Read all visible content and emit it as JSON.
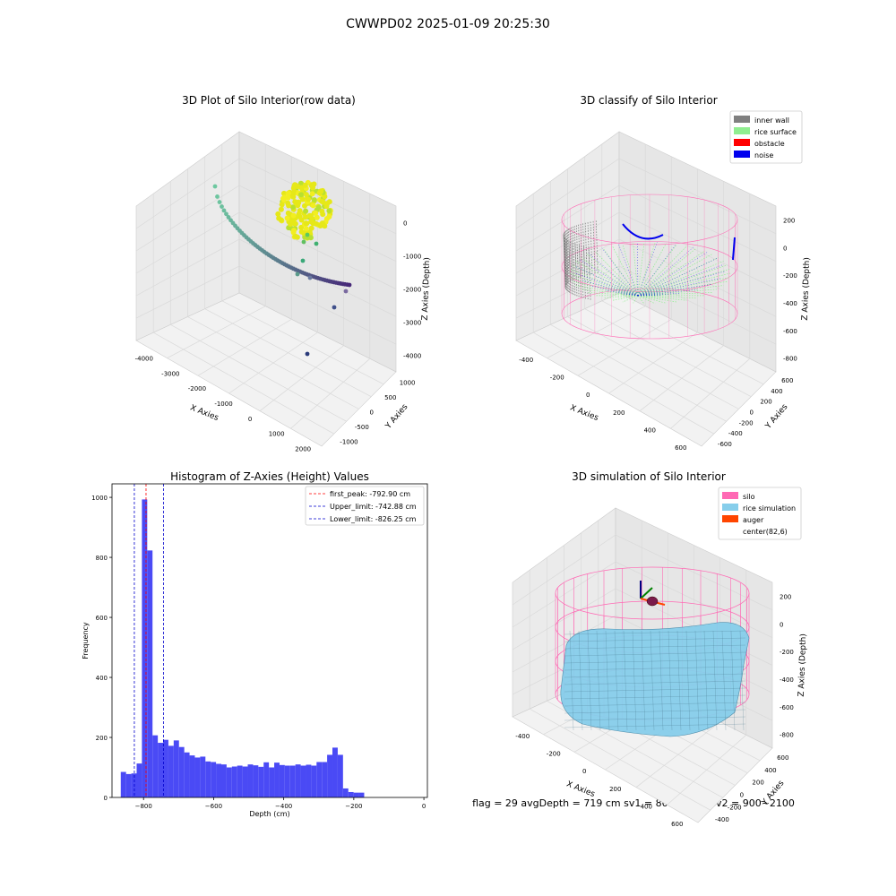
{
  "suptitle": "CWWPD02 2025-01-09 20:25:30",
  "status_text": "flag = 29  avgDepth = 719 cm  sv1 = 800~2000  sv2 = 900~2100",
  "colors": {
    "hist_bar": "#4a4af5",
    "first_peak": "#ff0000",
    "limit_line": "#0000cc",
    "inner_wall": "#808080",
    "rice_surface": "#90ee90",
    "obstacle": "#ff0000",
    "noise": "#0000ee",
    "silo": "#ff69b4",
    "rice_simulation": "#87ceeb",
    "auger": "#ff4500",
    "pane": "#ebebeb",
    "grid": "#d9d9d9"
  },
  "chart_data": [
    {
      "type": "scatter3d",
      "title": "3D Plot of Silo Interior(row data)",
      "xlabel": "X Axies",
      "ylabel": "Y Axies",
      "zlabel": "Z Axies (Depth)",
      "x_ticks": [
        "-4000",
        "-3000",
        "-2000",
        "-1000",
        "0",
        "1000",
        "2000"
      ],
      "y_ticks": [
        "1000",
        "500",
        "0",
        "-500",
        "-1000"
      ],
      "z_ticks": [
        "0",
        "-1000",
        "-2000",
        "-3000",
        "-4000"
      ],
      "xlim": [
        -4500,
        2800
      ],
      "ylim": [
        -1200,
        1200
      ],
      "zlim": [
        -4500,
        300
      ]
    },
    {
      "type": "scatter3d",
      "title": "3D classify of Silo Interior",
      "xlabel": "X Axies",
      "ylabel": "Y Axies",
      "zlabel": "Z Axies (Depth)",
      "x_ticks": [
        "-400",
        "-200",
        "0",
        "200",
        "400",
        "600"
      ],
      "y_ticks": [
        "600",
        "400",
        "200",
        "0",
        "-200",
        "-400",
        "-600"
      ],
      "z_ticks": [
        "200",
        "0",
        "-200",
        "-400",
        "-600",
        "-800"
      ],
      "legend": [
        {
          "label": "inner wall",
          "color_key": "inner_wall"
        },
        {
          "label": "rice surface",
          "color_key": "rice_surface"
        },
        {
          "label": "obstacle",
          "color_key": "obstacle"
        },
        {
          "label": "noise",
          "color_key": "noise"
        }
      ],
      "legend_loc": "upper right"
    },
    {
      "type": "histogram",
      "title": "Histogram of Z-Axies (Height) Values",
      "xlabel": "Depth (cm)",
      "ylabel": "Frequency",
      "xlim": [
        -890,
        10
      ],
      "ylim": [
        0,
        1045
      ],
      "x_ticks": [
        -800,
        -600,
        -400,
        -200,
        0
      ],
      "x_tick_labels": [
        "−800",
        "−600",
        "−400",
        "−200",
        "0"
      ],
      "y_ticks": [
        0,
        200,
        400,
        600,
        800,
        1000
      ],
      "bin_start": -865,
      "bin_width": 15.1,
      "values": [
        85,
        78,
        80,
        113,
        993,
        823,
        207,
        182,
        192,
        172,
        190,
        168,
        150,
        140,
        133,
        136,
        120,
        118,
        112,
        110,
        100,
        103,
        106,
        103,
        110,
        107,
        102,
        117,
        100,
        116,
        108,
        106,
        106,
        110,
        106,
        109,
        106,
        118,
        118,
        142,
        166,
        142,
        30,
        18,
        16,
        16
      ],
      "lines": [
        {
          "label": "first_peak: -792.90 cm",
          "x": -792.9,
          "color_key": "first_peak"
        },
        {
          "label": "Upper_limit: -742.88 cm",
          "x": -742.88,
          "color_key": "limit_line"
        },
        {
          "label": "Lower_limit: -826.25 cm",
          "x": -826.25,
          "color_key": "limit_line"
        }
      ],
      "legend_loc": "upper right"
    },
    {
      "type": "surface3d",
      "title": "3D simulation of Silo Interior",
      "xlabel": "X Axies",
      "ylabel": "Y Axies",
      "zlabel": "Z Axies (Depth)",
      "x_ticks": [
        "-400",
        "-200",
        "0",
        "200",
        "400",
        "600"
      ],
      "y_ticks": [
        "600",
        "400",
        "200",
        "0",
        "-200",
        "-400"
      ],
      "z_ticks": [
        "200",
        "0",
        "-200",
        "-400",
        "-600",
        "-800"
      ],
      "legend": [
        {
          "label": "silo",
          "color_key": "silo"
        },
        {
          "label": "rice simulation",
          "color_key": "rice_simulation"
        },
        {
          "label": "auger",
          "color_key": "auger"
        },
        {
          "label": "center(82,6)",
          "color_key": ""
        }
      ],
      "legend_loc": "upper right"
    }
  ]
}
